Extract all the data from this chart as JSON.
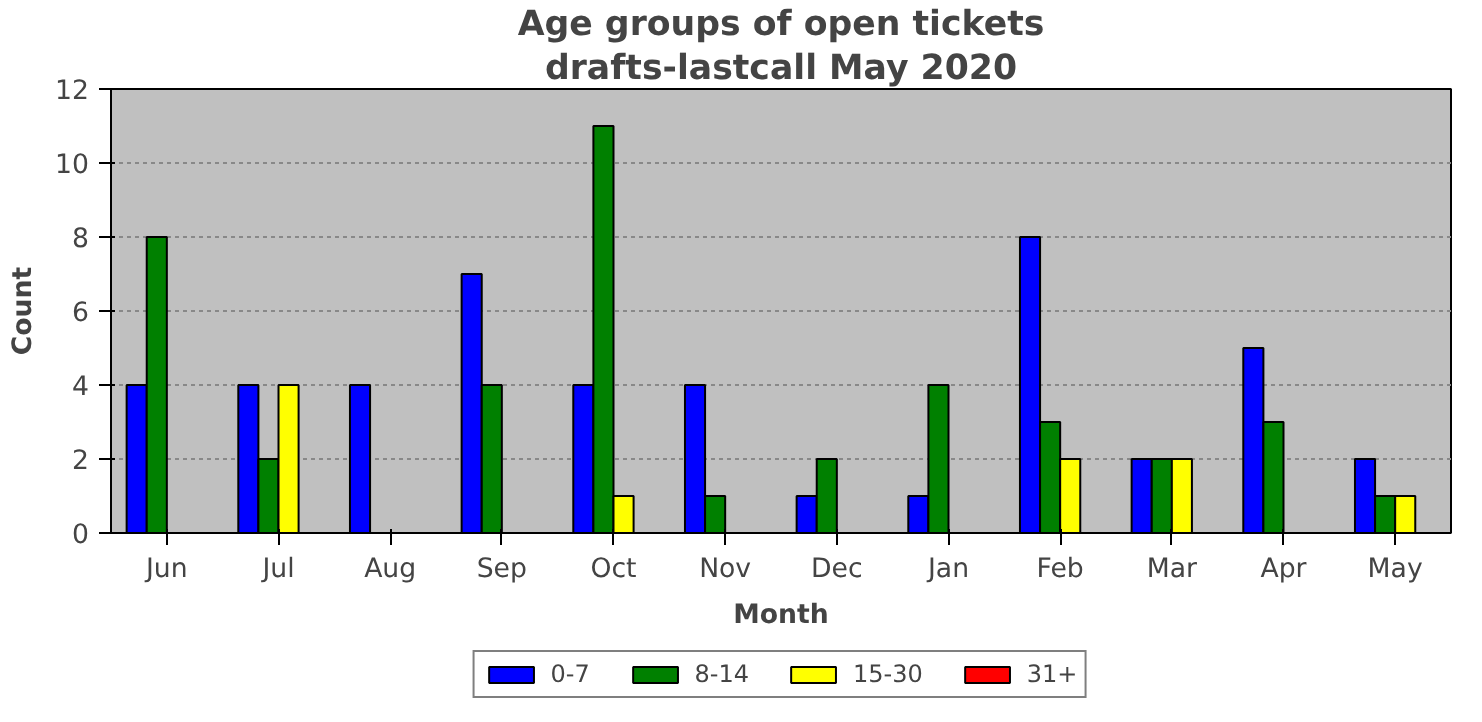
{
  "chart_data": {
    "type": "bar",
    "title": "Age groups of open tickets",
    "subtitle": "drafts-lastcall May 2020",
    "xlabel": "Month",
    "ylabel": "Count",
    "categories": [
      "Jun",
      "Jul",
      "Aug",
      "Sep",
      "Oct",
      "Nov",
      "Dec",
      "Jan",
      "Feb",
      "Mar",
      "Apr",
      "May"
    ],
    "series": [
      {
        "name": "0-7",
        "color": "#0000ff",
        "values": [
          4,
          4,
          4,
          7,
          4,
          4,
          1,
          1,
          8,
          2,
          5,
          2
        ]
      },
      {
        "name": "8-14",
        "color": "#008000",
        "values": [
          8,
          2,
          0,
          4,
          11,
          1,
          2,
          4,
          3,
          2,
          3,
          1
        ]
      },
      {
        "name": "15-30",
        "color": "#ffff00",
        "values": [
          0,
          4,
          0,
          0,
          1,
          0,
          0,
          0,
          2,
          2,
          0,
          1
        ]
      },
      {
        "name": "31+",
        "color": "#ff0000",
        "values": [
          0,
          0,
          0,
          0,
          0,
          0,
          0,
          0,
          0,
          0,
          0,
          0
        ]
      }
    ],
    "ylim": [
      0,
      12
    ],
    "yticks": [
      0,
      2,
      4,
      6,
      8,
      10,
      12
    ],
    "grid": "y",
    "legend": "bottom"
  }
}
